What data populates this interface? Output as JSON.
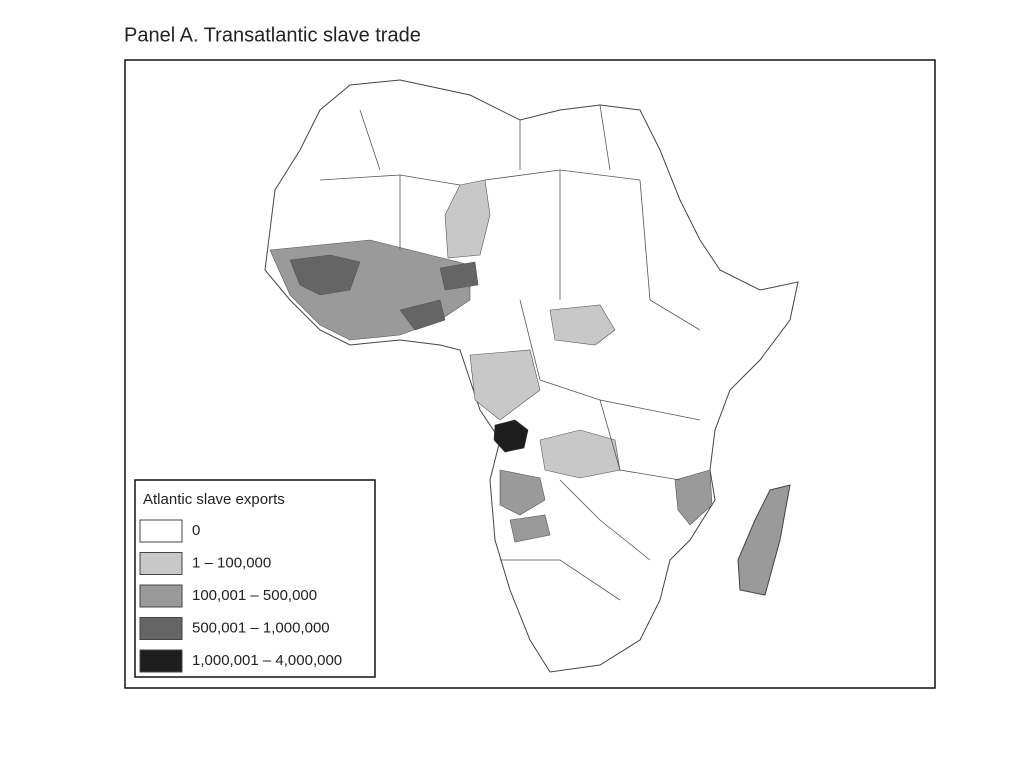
{
  "title": "Panel A. Transatlantic slave trade",
  "legend": {
    "title": "Atlantic slave exports",
    "items": [
      {
        "label": "0",
        "color": "#ffffff"
      },
      {
        "label": "1 – 100,000",
        "color": "#c8c8c8"
      },
      {
        "label": "100,001 – 500,000",
        "color": "#9a9a9a"
      },
      {
        "label": "500,001 – 1,000,000",
        "color": "#656565"
      },
      {
        "label": "1,000,001 – 4,000,000",
        "color": "#1e1e1e"
      }
    ]
  }
}
